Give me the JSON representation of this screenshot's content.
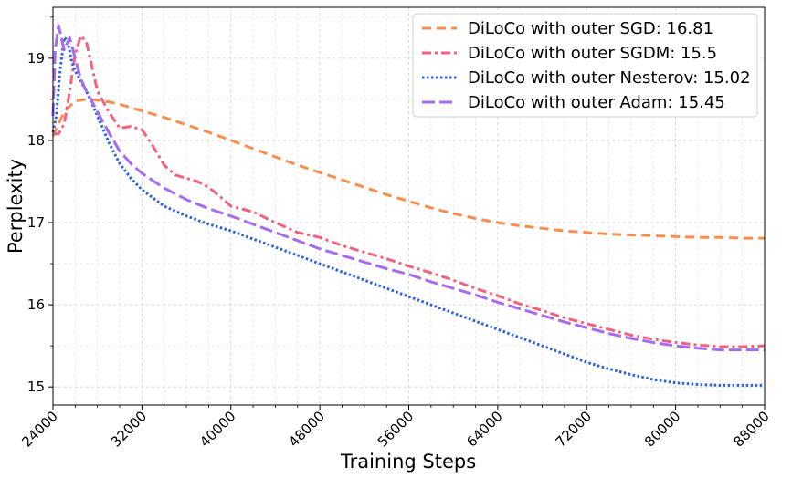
{
  "chart_data": {
    "type": "line",
    "xlabel": "Training Steps",
    "ylabel": "Perplexity",
    "xlim": [
      24000,
      88000
    ],
    "ylim": [
      14.78,
      19.62
    ],
    "x_ticks": [
      24000,
      32000,
      40000,
      48000,
      56000,
      64000,
      72000,
      80000,
      88000
    ],
    "y_ticks": [
      15,
      16,
      17,
      18,
      19
    ],
    "grid": true,
    "legend_position": "top-right",
    "series": [
      {
        "name": "DiLoCo with outer SGD: 16.81",
        "color": "#fd8d4e",
        "dash": "dashed",
        "x": [
          24000,
          24500,
          25000,
          26000,
          27000,
          28000,
          29000,
          30000,
          32000,
          34000,
          36000,
          38000,
          40000,
          42000,
          44000,
          46000,
          48000,
          50000,
          52000,
          54000,
          56000,
          58000,
          60000,
          62000,
          64000,
          66000,
          68000,
          70000,
          72000,
          74000,
          76000,
          78000,
          80000,
          82000,
          84000,
          86000,
          88000
        ],
        "values": [
          18.05,
          18.2,
          18.35,
          18.48,
          18.5,
          18.49,
          18.47,
          18.44,
          18.36,
          18.28,
          18.19,
          18.1,
          18.0,
          17.9,
          17.8,
          17.7,
          17.61,
          17.52,
          17.43,
          17.34,
          17.26,
          17.18,
          17.11,
          17.05,
          17.0,
          16.96,
          16.93,
          16.9,
          16.88,
          16.86,
          16.85,
          16.84,
          16.83,
          16.82,
          16.82,
          16.81,
          16.81
        ]
      },
      {
        "name": "DiLoCo with outer SGDM: 15.5",
        "color": "#f4617e",
        "dash": "dashdot",
        "x": [
          24000,
          24500,
          25000,
          25500,
          26000,
          26500,
          27000,
          28000,
          29000,
          30000,
          31000,
          32000,
          33000,
          34000,
          35000,
          36000,
          37000,
          38000,
          39000,
          40000,
          42000,
          44000,
          46000,
          48000,
          50000,
          52000,
          54000,
          56000,
          58000,
          60000,
          62000,
          64000,
          66000,
          68000,
          70000,
          72000,
          74000,
          76000,
          78000,
          80000,
          82000,
          84000,
          86000,
          88000
        ],
        "values": [
          18.08,
          18.08,
          18.2,
          18.6,
          19.05,
          19.27,
          19.2,
          18.6,
          18.35,
          18.15,
          18.17,
          18.13,
          17.93,
          17.7,
          17.58,
          17.54,
          17.5,
          17.43,
          17.32,
          17.2,
          17.13,
          17.0,
          16.88,
          16.82,
          16.72,
          16.64,
          16.56,
          16.47,
          16.39,
          16.3,
          16.2,
          16.11,
          16.01,
          15.93,
          15.84,
          15.77,
          15.7,
          15.63,
          15.58,
          15.54,
          15.51,
          15.49,
          15.49,
          15.5
        ]
      },
      {
        "name": "DiLoCo with outer Nesterov: 15.02",
        "color": "#2c62e0",
        "dash": "dotted",
        "x": [
          24000,
          24300,
          24600,
          25000,
          25300,
          25700,
          26000,
          26500,
          27000,
          28000,
          29000,
          30000,
          31000,
          32000,
          34000,
          36000,
          38000,
          40000,
          42000,
          44000,
          46000,
          48000,
          50000,
          52000,
          54000,
          56000,
          58000,
          60000,
          62000,
          64000,
          66000,
          68000,
          70000,
          72000,
          74000,
          76000,
          78000,
          80000,
          82000,
          84000,
          86000,
          88000
        ],
        "values": [
          18.1,
          18.3,
          18.8,
          19.25,
          19.22,
          18.95,
          18.85,
          18.72,
          18.6,
          18.3,
          17.98,
          17.72,
          17.54,
          17.4,
          17.2,
          17.08,
          16.98,
          16.9,
          16.8,
          16.7,
          16.6,
          16.5,
          16.4,
          16.3,
          16.2,
          16.1,
          16.0,
          15.9,
          15.8,
          15.7,
          15.6,
          15.5,
          15.4,
          15.3,
          15.22,
          15.15,
          15.09,
          15.05,
          15.03,
          15.02,
          15.02,
          15.02
        ]
      },
      {
        "name": "DiLoCo with outer Adam: 15.45",
        "color": "#a66bf1",
        "dash": "longdash",
        "x": [
          24000,
          24200,
          24500,
          25000,
          25500,
          26000,
          26500,
          27000,
          28000,
          29000,
          30000,
          31000,
          32000,
          34000,
          36000,
          38000,
          40000,
          42000,
          44000,
          46000,
          48000,
          50000,
          52000,
          54000,
          56000,
          58000,
          60000,
          62000,
          64000,
          66000,
          68000,
          70000,
          72000,
          74000,
          76000,
          78000,
          80000,
          82000,
          84000,
          86000,
          88000
        ],
        "values": [
          18.3,
          19.1,
          19.4,
          19.1,
          19.25,
          19.0,
          18.75,
          18.6,
          18.35,
          18.1,
          17.87,
          17.72,
          17.6,
          17.42,
          17.28,
          17.17,
          17.08,
          16.98,
          16.88,
          16.78,
          16.68,
          16.6,
          16.52,
          16.44,
          16.37,
          16.28,
          16.2,
          16.12,
          16.03,
          15.95,
          15.87,
          15.79,
          15.72,
          15.65,
          15.59,
          15.54,
          15.5,
          15.47,
          15.45,
          15.45,
          15.45
        ]
      }
    ]
  }
}
